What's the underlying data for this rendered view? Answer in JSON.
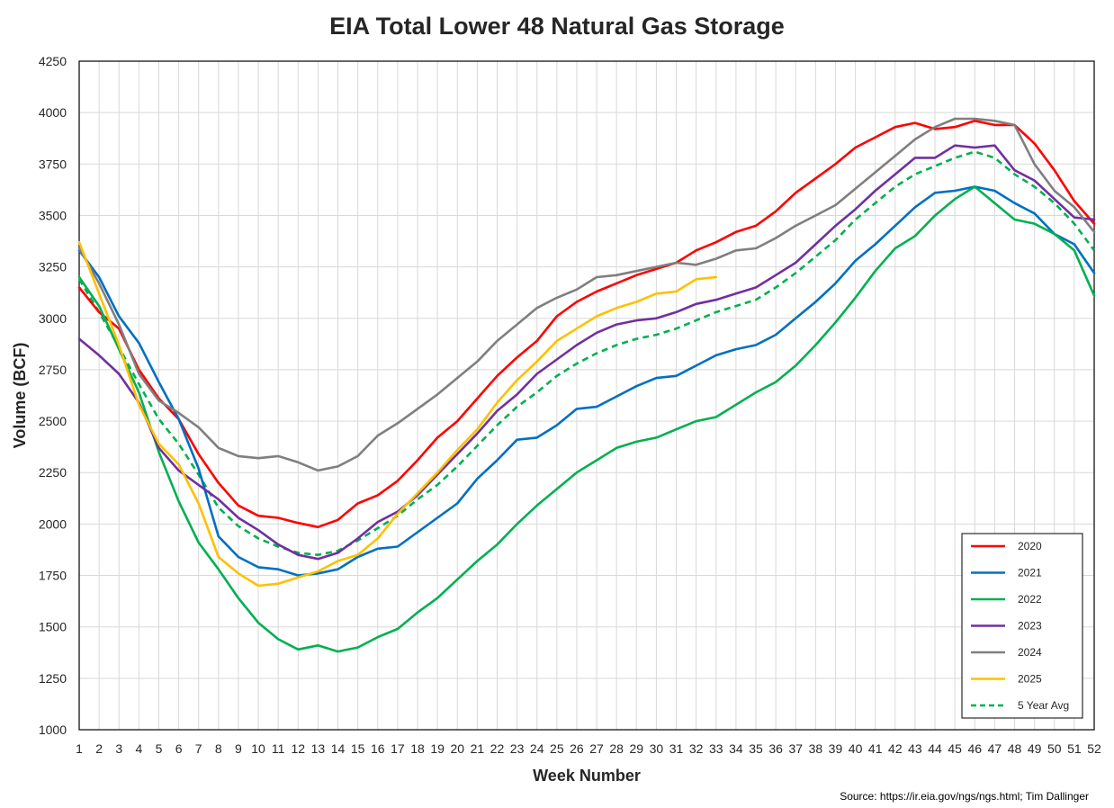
{
  "chart_data": {
    "type": "line",
    "title": "EIA Total Lower 48 Natural Gas Storage",
    "xlabel": "Week Number",
    "ylabel": "Volume (BCF)",
    "ylim": [
      1000,
      4250
    ],
    "yticks": [
      1000,
      1250,
      1500,
      1750,
      2000,
      2250,
      2500,
      2750,
      3000,
      3250,
      3500,
      3750,
      4000,
      4250
    ],
    "xlim": [
      1,
      52
    ],
    "x": [
      1,
      2,
      3,
      4,
      5,
      6,
      7,
      8,
      9,
      10,
      11,
      12,
      13,
      14,
      15,
      16,
      17,
      18,
      19,
      20,
      21,
      22,
      23,
      24,
      25,
      26,
      27,
      28,
      29,
      30,
      31,
      32,
      33,
      34,
      35,
      36,
      37,
      38,
      39,
      40,
      41,
      42,
      43,
      44,
      45,
      46,
      47,
      48,
      49,
      50,
      51,
      52
    ],
    "grid": true,
    "legend_position": "bottom-right",
    "series": [
      {
        "name": "2020",
        "color": "#ff0000",
        "dash": false,
        "values": [
          3150,
          3030,
          2950,
          2750,
          2610,
          2510,
          2340,
          2200,
          2090,
          2040,
          2030,
          2005,
          1985,
          2020,
          2100,
          2140,
          2210,
          2310,
          2420,
          2500,
          2610,
          2720,
          2810,
          2890,
          3010,
          3080,
          3130,
          3170,
          3210,
          3240,
          3270,
          3330,
          3370,
          3420,
          3450,
          3520,
          3610,
          3680,
          3750,
          3830,
          3880,
          3930,
          3950,
          3920,
          3930,
          3960,
          3940,
          3940,
          3850,
          3720,
          3570,
          3460
        ]
      },
      {
        "name": "2021",
        "color": "#0070c0",
        "dash": false,
        "values": [
          3330,
          3200,
          3010,
          2880,
          2690,
          2510,
          2270,
          1940,
          1840,
          1790,
          1780,
          1750,
          1760,
          1780,
          1840,
          1880,
          1890,
          1960,
          2030,
          2100,
          2220,
          2310,
          2410,
          2420,
          2480,
          2560,
          2570,
          2620,
          2670,
          2710,
          2720,
          2770,
          2820,
          2850,
          2870,
          2920,
          3000,
          3080,
          3170,
          3280,
          3360,
          3450,
          3540,
          3610,
          3620,
          3640,
          3620,
          3560,
          3510,
          3410,
          3360,
          3220
        ]
      },
      {
        "name": "2022",
        "color": "#00b050",
        "dash": false,
        "values": [
          3200,
          3060,
          2850,
          2640,
          2350,
          2110,
          1910,
          1780,
          1640,
          1520,
          1440,
          1390,
          1410,
          1380,
          1400,
          1450,
          1490,
          1570,
          1640,
          1730,
          1820,
          1900,
          2000,
          2090,
          2170,
          2250,
          2310,
          2370,
          2400,
          2420,
          2460,
          2500,
          2520,
          2580,
          2640,
          2690,
          2770,
          2870,
          2980,
          3100,
          3230,
          3340,
          3400,
          3500,
          3580,
          3640,
          3560,
          3480,
          3460,
          3410,
          3330,
          3110
        ]
      },
      {
        "name": "2023",
        "color": "#7030a0",
        "dash": false,
        "values": [
          2900,
          2820,
          2730,
          2590,
          2370,
          2260,
          2190,
          2120,
          2030,
          1970,
          1900,
          1850,
          1830,
          1860,
          1930,
          2010,
          2060,
          2140,
          2240,
          2340,
          2440,
          2550,
          2630,
          2730,
          2800,
          2870,
          2930,
          2970,
          2990,
          3000,
          3030,
          3070,
          3090,
          3120,
          3150,
          3210,
          3270,
          3360,
          3450,
          3530,
          3620,
          3700,
          3780,
          3780,
          3840,
          3830,
          3840,
          3720,
          3670,
          3580,
          3490,
          3480
        ]
      },
      {
        "name": "2024",
        "color": "#7f7f7f",
        "dash": false,
        "values": [
          3340,
          3170,
          2970,
          2730,
          2600,
          2540,
          2470,
          2370,
          2330,
          2320,
          2330,
          2300,
          2260,
          2280,
          2330,
          2430,
          2490,
          2560,
          2630,
          2710,
          2790,
          2890,
          2970,
          3050,
          3100,
          3140,
          3200,
          3210,
          3230,
          3250,
          3270,
          3260,
          3290,
          3330,
          3340,
          3390,
          3450,
          3500,
          3550,
          3630,
          3710,
          3790,
          3870,
          3930,
          3970,
          3970,
          3960,
          3940,
          3750,
          3620,
          3540,
          3420
        ]
      },
      {
        "name": "2025",
        "color": "#ffc000",
        "dash": false,
        "values": [
          3370,
          3120,
          2870,
          2580,
          2390,
          2290,
          2100,
          1840,
          1760,
          1700,
          1710,
          1740,
          1770,
          1820,
          1850,
          1930,
          2050,
          2150,
          2250,
          2360,
          2460,
          2590,
          2700,
          2790,
          2890,
          2950,
          3010,
          3050,
          3080,
          3120,
          3130,
          3190,
          3200,
          null,
          null,
          null,
          null,
          null,
          null,
          null,
          null,
          null,
          null,
          null,
          null,
          null,
          null,
          null,
          null,
          null,
          null,
          null
        ]
      },
      {
        "name": "5 Year Avg",
        "color": "#00b050",
        "dash": true,
        "values": [
          3190,
          3030,
          2860,
          2680,
          2510,
          2390,
          2240,
          2080,
          1990,
          1930,
          1890,
          1860,
          1850,
          1870,
          1920,
          1980,
          2040,
          2120,
          2190,
          2280,
          2380,
          2480,
          2570,
          2640,
          2720,
          2780,
          2830,
          2870,
          2900,
          2920,
          2950,
          2990,
          3030,
          3060,
          3090,
          3150,
          3220,
          3300,
          3380,
          3480,
          3560,
          3640,
          3700,
          3740,
          3780,
          3810,
          3780,
          3700,
          3640,
          3560,
          3460,
          3330
        ]
      }
    ]
  },
  "source": "Source: https://ir.eia.gov/ngs/ngs.html; Tim Dallinger"
}
